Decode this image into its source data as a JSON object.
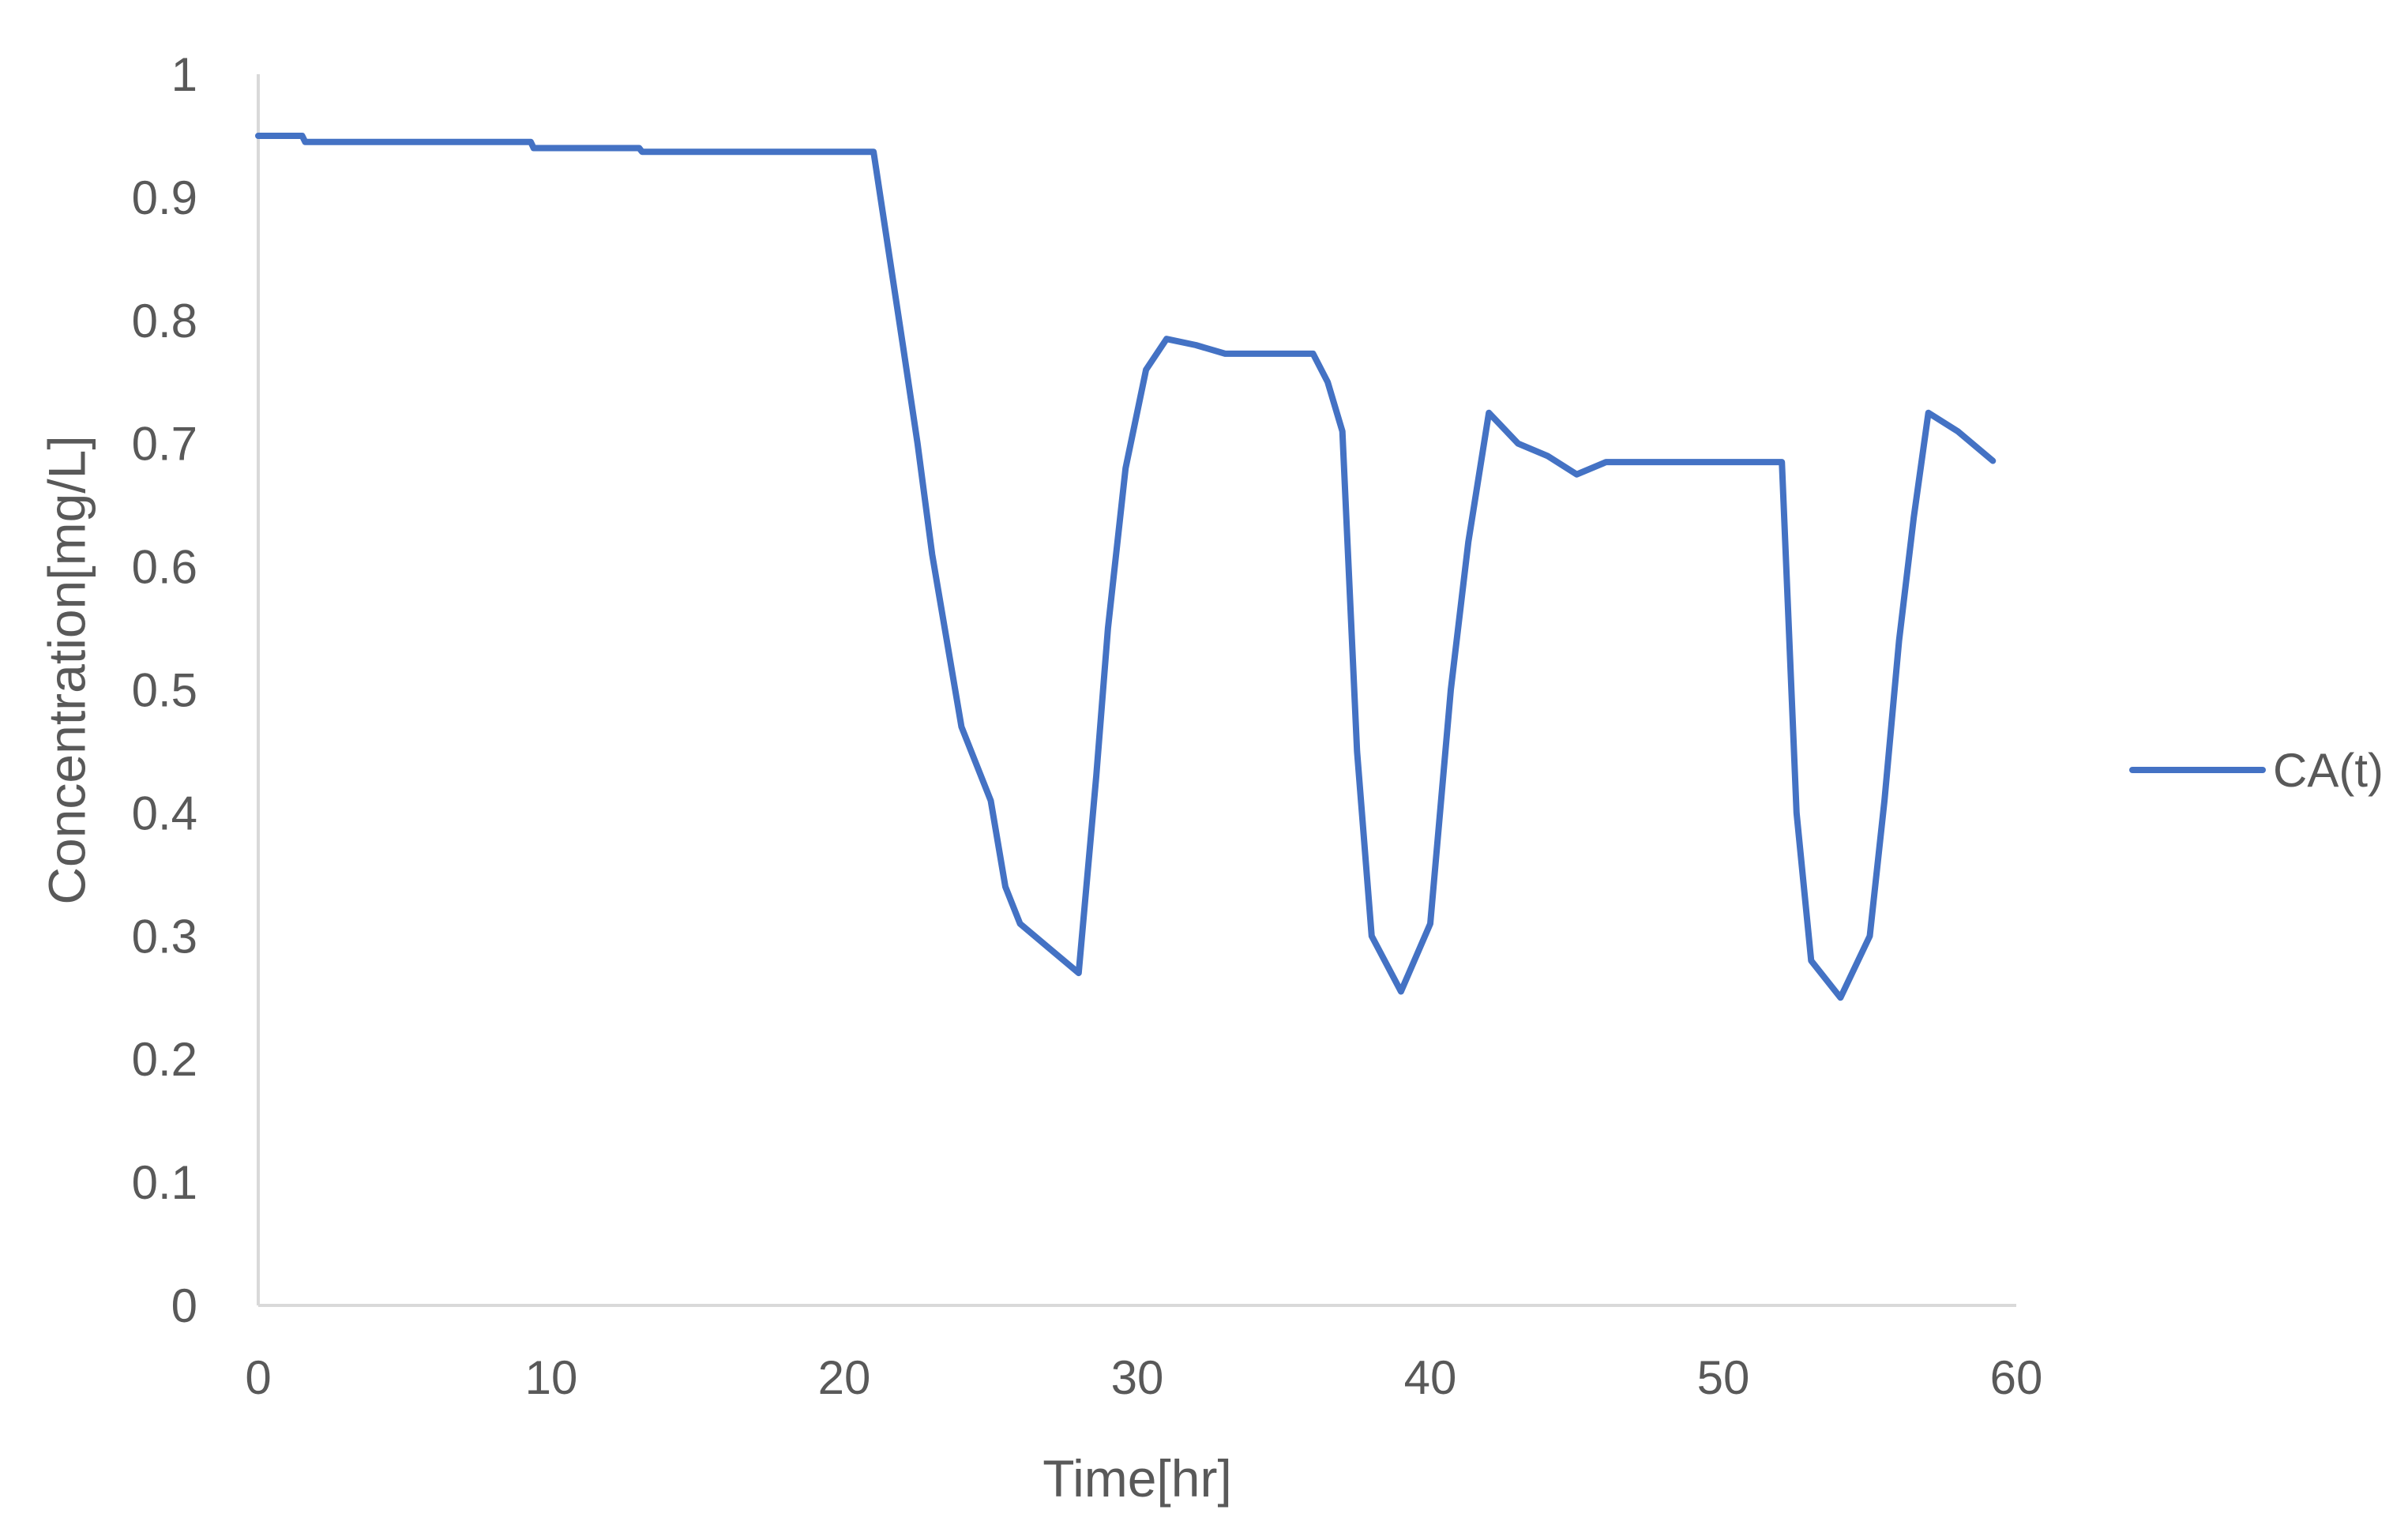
{
  "chart_data": {
    "type": "line",
    "title": "",
    "xlabel": "Time[hr]",
    "ylabel": "Concentration[mg/L]",
    "xlim": [
      0,
      60
    ],
    "ylim": [
      0,
      1
    ],
    "x_ticks": [
      "0",
      "10",
      "20",
      "30",
      "40",
      "50",
      "60"
    ],
    "y_ticks": [
      "0",
      "0.1",
      "0.2",
      "0.3",
      "0.4",
      "0.5",
      "0.6",
      "0.7",
      "0.8",
      "0.9",
      "1"
    ],
    "grid": false,
    "legend_position": "right",
    "series": [
      {
        "name": "CA(t)",
        "color": "#4472C4",
        "x": [
          0,
          1.5,
          1.6,
          9.3,
          9.4,
          13,
          13.1,
          21,
          21.3,
          22,
          22.5,
          23,
          24,
          25,
          25.5,
          26,
          27,
          28,
          28.6,
          29,
          29.6,
          30.3,
          31,
          32,
          33,
          34,
          35,
          36,
          36.5,
          37,
          37.5,
          38,
          39,
          40,
          40.7,
          41.3,
          42,
          43,
          44,
          45,
          46,
          47,
          48,
          50,
          52,
          52.5,
          53,
          54,
          55,
          55.5,
          56,
          56.5,
          57,
          58,
          59.2
        ],
        "y": [
          0.95,
          0.95,
          0.945,
          0.945,
          0.94,
          0.94,
          0.937,
          0.937,
          0.89,
          0.78,
          0.7,
          0.61,
          0.47,
          0.41,
          0.34,
          0.31,
          0.29,
          0.27,
          0.43,
          0.55,
          0.68,
          0.76,
          0.785,
          0.78,
          0.773,
          0.773,
          0.773,
          0.773,
          0.75,
          0.71,
          0.45,
          0.3,
          0.255,
          0.31,
          0.5,
          0.62,
          0.725,
          0.7,
          0.69,
          0.675,
          0.685,
          0.685,
          0.685,
          0.685,
          0.685,
          0.4,
          0.28,
          0.25,
          0.3,
          0.41,
          0.54,
          0.64,
          0.725,
          0.71,
          0.686
        ]
      }
    ]
  }
}
